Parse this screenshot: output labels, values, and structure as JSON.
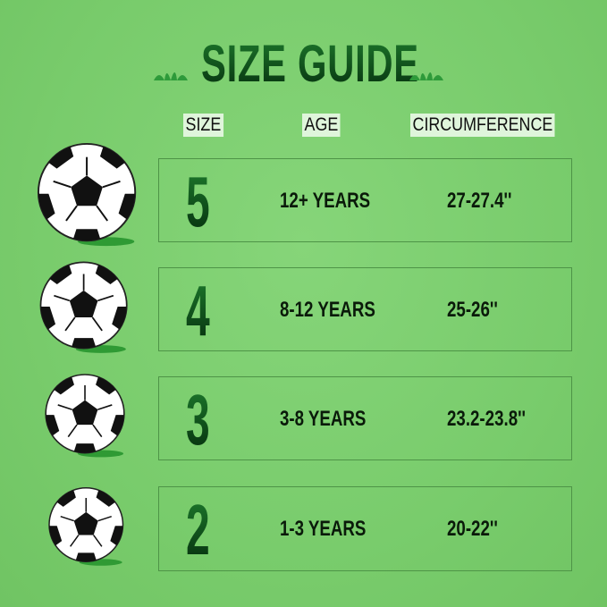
{
  "title": "SIZE GUIDE",
  "headers": {
    "size": "SIZE",
    "age": "AGE",
    "circumference": "CIRCUMFERENCE"
  },
  "colors": {
    "background": "#7ccf6f",
    "title": "#0d4a1a",
    "header_bg": "#dff5db"
  },
  "rows": [
    {
      "size": "5",
      "age": "12+ YEARS",
      "circumference": "27-27.4''"
    },
    {
      "size": "4",
      "age": "8-12 YEARS",
      "circumference": "25-26''"
    },
    {
      "size": "3",
      "age": "3-8 YEARS",
      "circumference": "23.2-23.8''"
    },
    {
      "size": "2",
      "age": "1-3 YEARS",
      "circumference": "20-22''"
    }
  ]
}
